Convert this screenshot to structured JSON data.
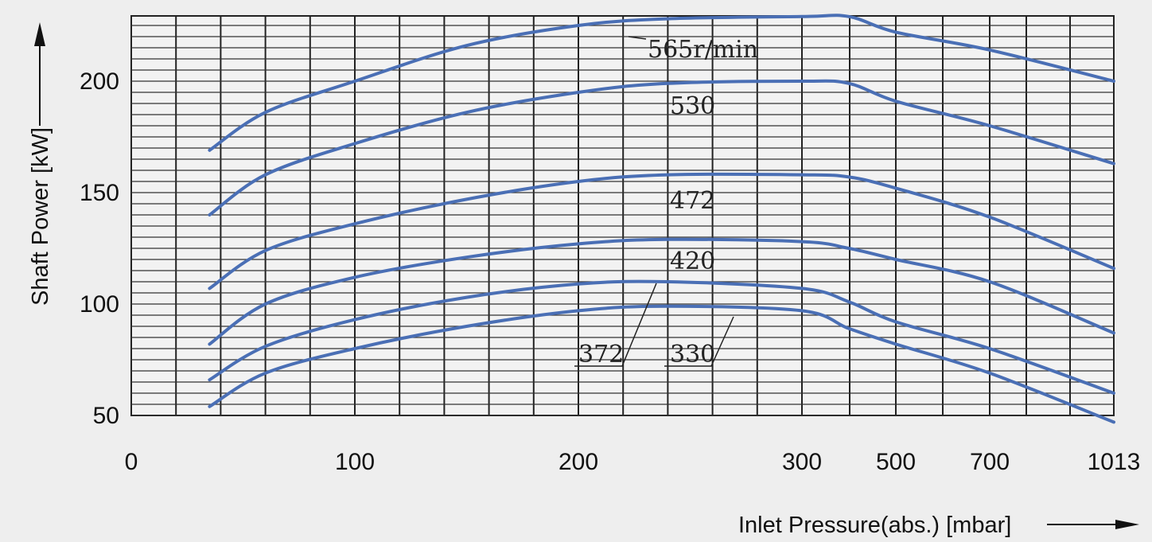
{
  "chart_data": {
    "type": "line",
    "title": "",
    "xlabel": "Inlet Pressure(abs.)  [mbar]",
    "ylabel": "Shaft Power [kW]",
    "x_ticks": [
      "0",
      "100",
      "200",
      "300",
      "500",
      "700",
      "1013"
    ],
    "y_ticks": [
      "50",
      "100",
      "150",
      "200"
    ],
    "ylim": [
      50,
      230
    ],
    "x_scale": "non-uniform (0 to 300 linear, then 500, 700, 1013 at equal spacing)",
    "grid": true,
    "x": [
      35,
      60,
      100,
      150,
      200,
      240,
      300,
      400,
      500,
      700,
      1013
    ],
    "series": [
      {
        "name": "565r/min",
        "values": [
          169,
          186,
          200,
          216,
          225,
          228,
          229,
          229,
          222,
          214,
          200
        ]
      },
      {
        "name": "530",
        "values": [
          140,
          158,
          172,
          186,
          195,
          199,
          200,
          199,
          191,
          180,
          163
        ]
      },
      {
        "name": "472",
        "values": [
          107,
          124,
          136,
          147,
          155,
          158,
          158,
          157,
          152,
          139,
          116
        ]
      },
      {
        "name": "420",
        "values": [
          82,
          100,
          112,
          121,
          127,
          129,
          128,
          125,
          120,
          110,
          87
        ]
      },
      {
        "name": "372",
        "values": [
          66,
          81,
          93,
          103,
          109,
          110,
          107,
          101,
          92,
          80,
          60
        ]
      },
      {
        "name": "330",
        "values": [
          54,
          69,
          80,
          90,
          97,
          99,
          97,
          89,
          82,
          69,
          47
        ]
      }
    ],
    "curve_labels": [
      "565r/min",
      "530",
      "472",
      "420",
      "372",
      "330"
    ]
  }
}
